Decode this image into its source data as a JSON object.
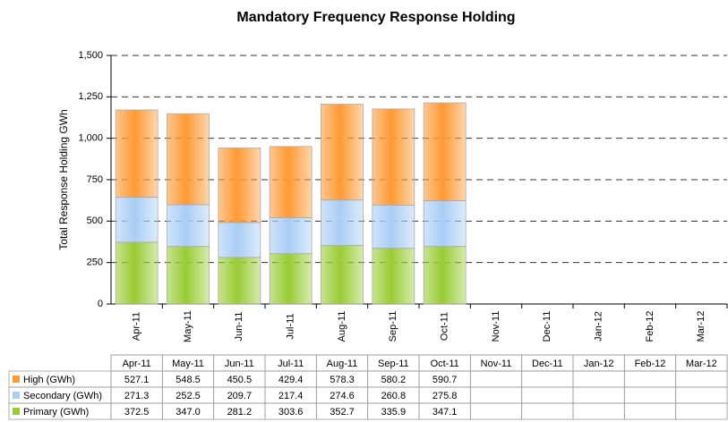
{
  "chart_data": {
    "type": "bar",
    "stacked": true,
    "title": "Mandatory Frequency Response Holding",
    "y_label": "Total Response Holding GWh",
    "categories": [
      "Apr-11",
      "May-11",
      "Jun-11",
      "Jul-11",
      "Aug-11",
      "Sep-11",
      "Oct-11",
      "Nov-11",
      "Dec-11",
      "Jan-12",
      "Feb-12",
      "Mar-12"
    ],
    "series": [
      {
        "name": "High (GWh)",
        "color": "#ff9933",
        "values": [
          527.1,
          548.5,
          450.5,
          429.4,
          578.3,
          580.2,
          590.7,
          null,
          null,
          null,
          null,
          null
        ],
        "value_labels": [
          "527.1",
          "548.5",
          "450.5",
          "429.4",
          "578.3",
          "580.2",
          "590.7",
          null,
          null,
          null,
          null,
          null
        ]
      },
      {
        "name": "Secondary (GWh)",
        "color": "#a9cdf5",
        "values": [
          271.3,
          252.5,
          209.7,
          217.4,
          274.6,
          260.8,
          275.8,
          null,
          null,
          null,
          null,
          null
        ],
        "value_labels": [
          "271.3",
          "252.5",
          "209.7",
          "217.4",
          "274.6",
          "260.8",
          "275.8",
          null,
          null,
          null,
          null,
          null
        ]
      },
      {
        "name": "Primary (GWh)",
        "color": "#99cc33",
        "values": [
          372.5,
          347.0,
          281.2,
          303.6,
          352.7,
          335.9,
          347.1,
          null,
          null,
          null,
          null,
          null
        ],
        "value_labels": [
          "372.5",
          "347.0",
          "281.2",
          "303.6",
          "352.7",
          "335.9",
          "347.1",
          null,
          null,
          null,
          null,
          null
        ]
      }
    ],
    "ylim": [
      0,
      1500
    ],
    "yticks": [
      0,
      250,
      500,
      750,
      {
        "value": 1000,
        "label": "1,000"
      },
      {
        "value": 1250,
        "label": "1,250"
      },
      {
        "value": 1500,
        "label": "1,500"
      }
    ],
    "grid": true
  }
}
